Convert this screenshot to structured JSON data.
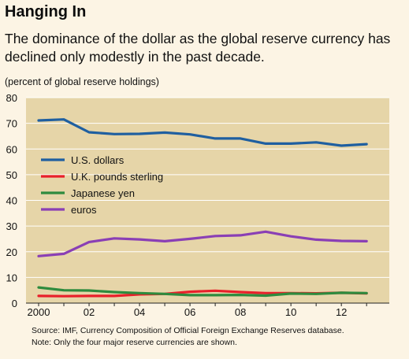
{
  "header": {
    "title": "Hanging In",
    "subtitle": "The dominance of the dollar as the global reserve currency has declined only modestly in the past decade.",
    "unit_label": "(percent of global reserve holdings)"
  },
  "footer": {
    "source": "Source: IMF, Currency Composition of Official Foreign Exchange Reserves database.",
    "note": "Note: Only the four major reserve currencies are shown."
  },
  "chart_data": {
    "type": "line",
    "title": "Hanging In",
    "ylabel": "(percent of global reserve holdings)",
    "xlabel": "",
    "x": [
      2000,
      2001,
      2002,
      2003,
      2004,
      2005,
      2006,
      2007,
      2008,
      2009,
      2010,
      2011,
      2012,
      2013
    ],
    "xlim": [
      1999.5,
      2013.9
    ],
    "ylim": [
      0,
      80
    ],
    "x_ticks": [
      {
        "value": 2000,
        "label": "2000"
      },
      {
        "value": 2002,
        "label": "02"
      },
      {
        "value": 2004,
        "label": "04"
      },
      {
        "value": 2006,
        "label": "06"
      },
      {
        "value": 2008,
        "label": "08"
      },
      {
        "value": 2010,
        "label": "10"
      },
      {
        "value": 2012,
        "label": "12"
      }
    ],
    "y_ticks": [
      0,
      10,
      20,
      30,
      40,
      50,
      60,
      70,
      80
    ],
    "grid": true,
    "background": "#e6d5a8",
    "legend_position": "left",
    "series": [
      {
        "name": "U.S. dollars",
        "color": "#1f5fa0",
        "values": [
          71.1,
          71.5,
          66.5,
          65.8,
          65.9,
          66.4,
          65.7,
          64.1,
          64.1,
          62.1,
          62.1,
          62.6,
          61.3,
          61.9
        ]
      },
      {
        "name": "U.K. pounds sterling",
        "color": "#e8202a",
        "values": [
          2.8,
          2.7,
          2.8,
          2.8,
          3.4,
          3.6,
          4.4,
          4.8,
          4.3,
          3.9,
          3.9,
          3.8,
          4.0,
          3.8
        ]
      },
      {
        "name": "Japanese yen",
        "color": "#2e8b3e",
        "values": [
          6.1,
          5.0,
          4.9,
          4.3,
          3.9,
          3.6,
          3.1,
          3.1,
          3.2,
          2.9,
          3.7,
          3.6,
          4.0,
          3.9
        ]
      },
      {
        "name": "euros",
        "color": "#8a3fb5",
        "values": [
          18.3,
          19.2,
          23.8,
          25.2,
          24.8,
          24.1,
          25.0,
          26.1,
          26.4,
          27.8,
          26.0,
          24.7,
          24.2,
          24.1
        ]
      }
    ]
  }
}
